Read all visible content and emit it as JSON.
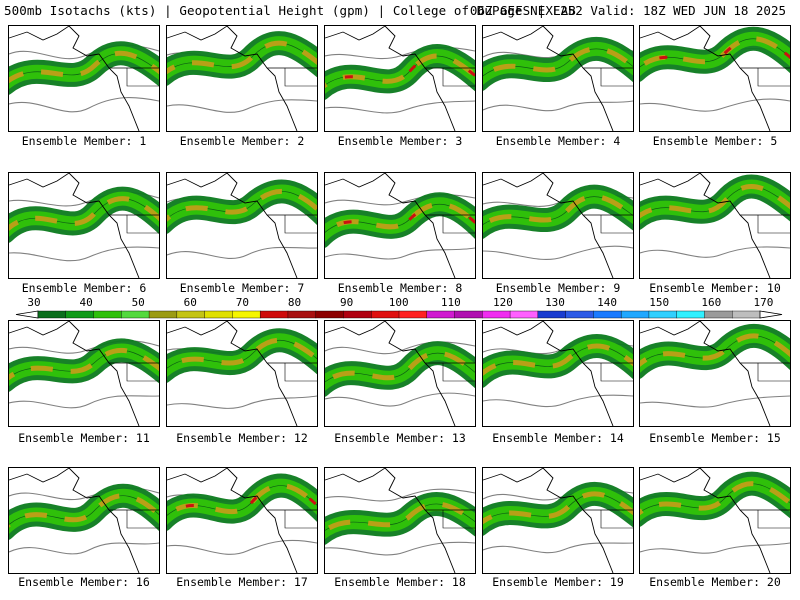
{
  "header": {
    "title": "500mb Isotachs (kts) | Geopotential Height (gpm) | College of DuPage NEXLAB",
    "run": "06Z GEFS | F252 Valid: 18Z WED JUN 18 2025"
  },
  "panels": [
    {
      "label": "Ensemble Member: 1"
    },
    {
      "label": "Ensemble Member: 2"
    },
    {
      "label": "Ensemble Member: 3"
    },
    {
      "label": "Ensemble Member: 4"
    },
    {
      "label": "Ensemble Member: 5"
    },
    {
      "label": "Ensemble Member: 6"
    },
    {
      "label": "Ensemble Member: 7"
    },
    {
      "label": "Ensemble Member: 8"
    },
    {
      "label": "Ensemble Member: 9"
    },
    {
      "label": "Ensemble Member: 10"
    },
    {
      "label": "Ensemble Member: 11"
    },
    {
      "label": "Ensemble Member: 12"
    },
    {
      "label": "Ensemble Member: 13"
    },
    {
      "label": "Ensemble Member: 14"
    },
    {
      "label": "Ensemble Member: 15"
    },
    {
      "label": "Ensemble Member: 16"
    },
    {
      "label": "Ensemble Member: 17"
    },
    {
      "label": "Ensemble Member: 18"
    },
    {
      "label": "Ensemble Member: 19"
    },
    {
      "label": "Ensemble Member: 20"
    }
  ],
  "colorbar": {
    "ticks": [
      "30",
      "40",
      "50",
      "60",
      "70",
      "80",
      "90",
      "100",
      "110",
      "120",
      "130",
      "140",
      "150",
      "160",
      "170"
    ],
    "colors": [
      "#0b6e1c",
      "#109a18",
      "#2fc00a",
      "#53d93d",
      "#9b9b13",
      "#c4c414",
      "#e0e000",
      "#f6f600",
      "#cf0a0a",
      "#a81010",
      "#8c0000",
      "#b00010",
      "#e01010",
      "#ff2020",
      "#d01ad0",
      "#b010b0",
      "#f02cf0",
      "#ff60ff",
      "#1a3cd0",
      "#2c5ae6",
      "#1a7aff",
      "#20a8ff",
      "#30d0ff",
      "#30f0ff",
      "#9a9a9a",
      "#bdbdbd"
    ]
  },
  "legend_colors": {
    "jet_low": "#0b7a1c",
    "jet_mid": "#2fc00a",
    "jet_core": "#b8a017",
    "jet_max": "#cc1010",
    "height_contour": "#808080",
    "coastline": "#000000"
  }
}
